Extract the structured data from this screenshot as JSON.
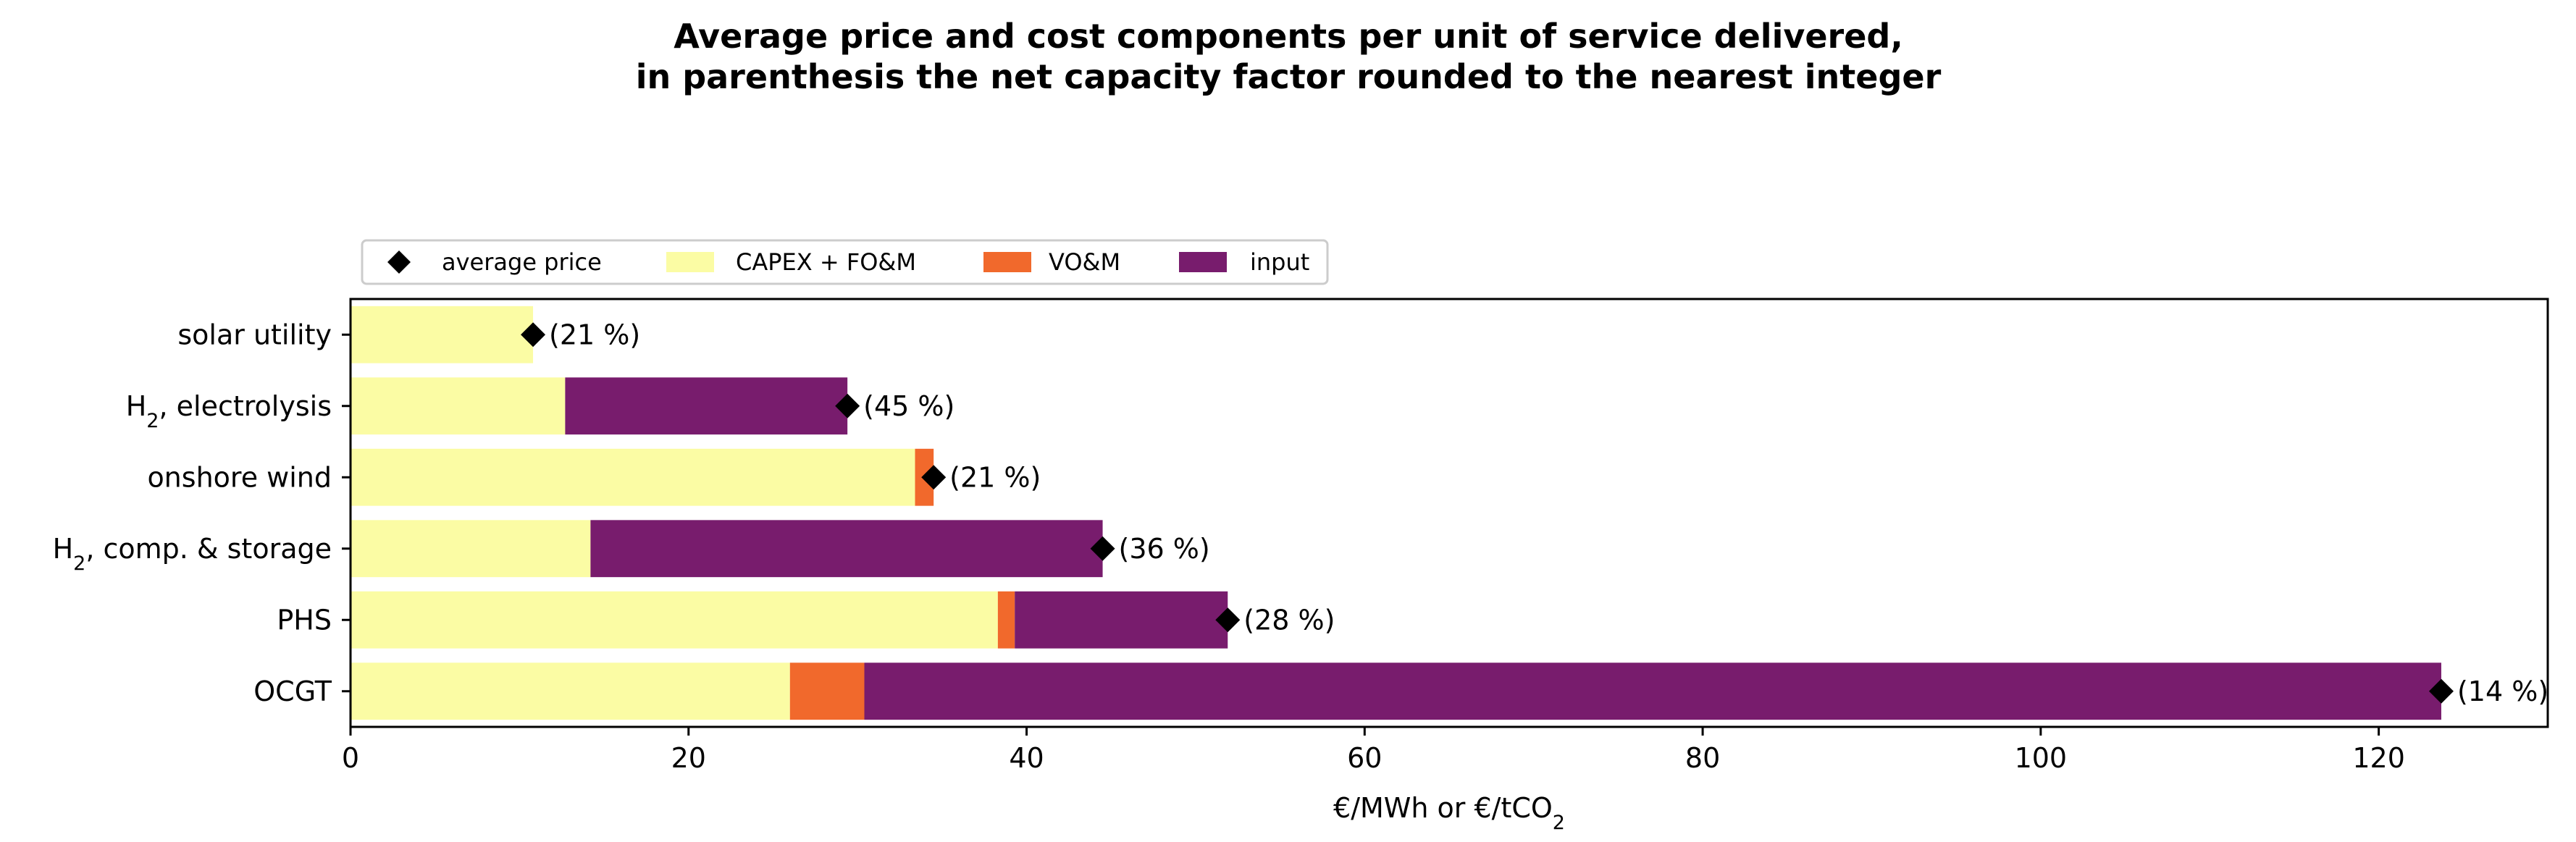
{
  "chart_data": {
    "type": "bar",
    "orientation": "horizontal",
    "stacked": true,
    "title": "Average price and cost components per unit of service delivered,\nin parenthesis the net capacity factor rounded to the nearest integer",
    "xlabel": "€/MWh or €/tCO",
    "xlabel_subscript": "2",
    "ylabel": "",
    "xlim": [
      0,
      130
    ],
    "xticks": [
      0,
      20,
      40,
      60,
      80,
      100,
      120
    ],
    "grid": false,
    "legend_position": "top-left",
    "categories": [
      {
        "label": "solar utility",
        "subscript": "",
        "suffix": ""
      },
      {
        "label": "H",
        "subscript": "2",
        "suffix": ", electrolysis"
      },
      {
        "label": "onshore wind",
        "subscript": "",
        "suffix": ""
      },
      {
        "label": "H",
        "subscript": "2",
        "suffix": ", comp. & storage"
      },
      {
        "label": "PHS",
        "subscript": "",
        "suffix": ""
      },
      {
        "label": "OCGT",
        "subscript": "",
        "suffix": ""
      }
    ],
    "series": [
      {
        "name": "CAPEX + FO&M",
        "color": "#fbfca4",
        "values": [
          10.8,
          12.7,
          33.4,
          14.2,
          38.3,
          26.0
        ]
      },
      {
        "name": "VO&M",
        "color": "#f1692c",
        "values": [
          0,
          0,
          1.1,
          0,
          1.0,
          4.4
        ]
      },
      {
        "name": "input",
        "color": "#781c6d",
        "values": [
          0,
          16.7,
          0,
          30.3,
          12.6,
          93.3
        ]
      }
    ],
    "average_price": {
      "name": "average price",
      "color": "#000000",
      "values": [
        10.8,
        29.4,
        34.5,
        44.5,
        51.9,
        123.7
      ],
      "labels": [
        "(21 %)",
        "(45 %)",
        "(21 %)",
        "(36 %)",
        "(28 %)",
        "(14 %)"
      ]
    }
  }
}
